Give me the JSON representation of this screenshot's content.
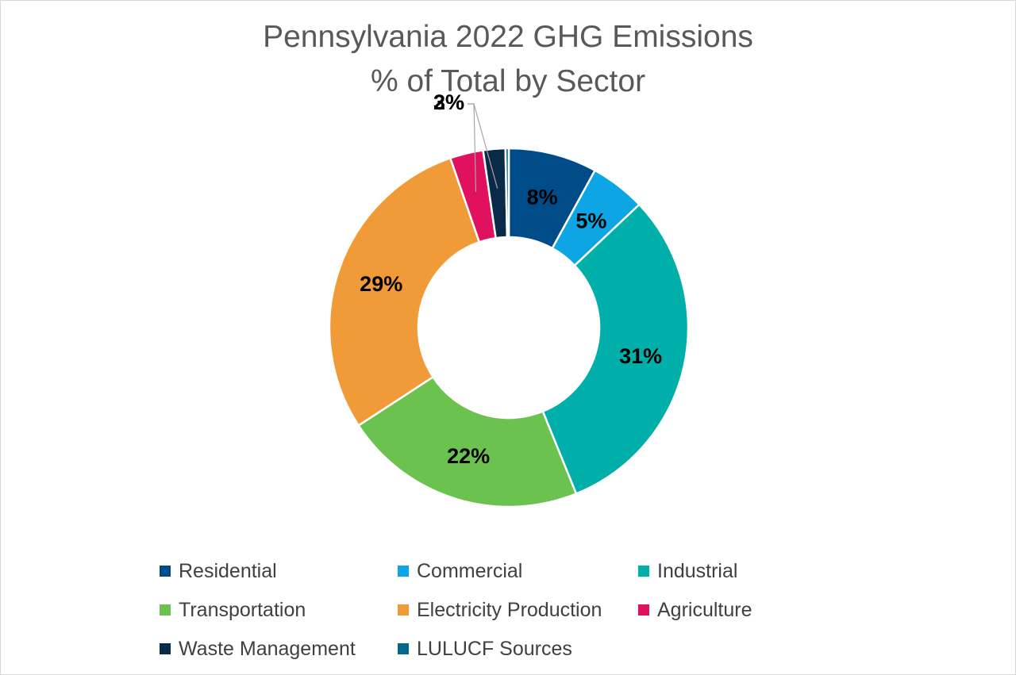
{
  "chart_data": {
    "type": "pie",
    "variant": "donut",
    "title_lines": [
      "Pennsylvania 2022 GHG Emissions",
      "% of Total by Sector"
    ],
    "slices": [
      {
        "name": "Residential",
        "value": 8,
        "label": "8%",
        "color": "#004C88"
      },
      {
        "name": "Commercial",
        "value": 5,
        "label": "5%",
        "color": "#0EA5E4"
      },
      {
        "name": "Industrial",
        "value": 31,
        "label": "31%",
        "color": "#00AFAA"
      },
      {
        "name": "Transportation",
        "value": 22,
        "label": "22%",
        "color": "#6BC24E"
      },
      {
        "name": "Electricity Production",
        "value": 29,
        "label": "29%",
        "color": "#F19A38"
      },
      {
        "name": "Agriculture",
        "value": 3,
        "label": "3%",
        "color": "#E0115F"
      },
      {
        "name": "Waste Management",
        "value": 2,
        "label": "2%",
        "color": "#0A2A4A"
      },
      {
        "name": "LULUCF Sources",
        "value": 0.3,
        "label": "",
        "color": "#00698C"
      }
    ],
    "legend_position": "bottom"
  }
}
